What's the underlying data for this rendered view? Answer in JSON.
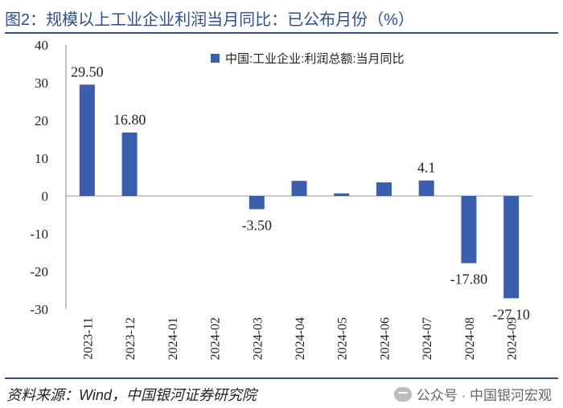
{
  "header": {
    "title": "图2：规模以上工业企业利润当月同比：已公布月份（%）"
  },
  "footer": {
    "source": "资料来源：Wind，中国银河证券研究院",
    "watermark": "公众号 · 中国银河宏观"
  },
  "colors": {
    "bar": "#3a5fad",
    "rule": "#2f4f8f"
  },
  "chart_data": {
    "type": "bar",
    "categories": [
      "2023-11",
      "2023-12",
      "2024-01",
      "2024-02",
      "2024-03",
      "2024-04",
      "2024-05",
      "2024-06",
      "2024-07",
      "2024-08",
      "2024-09"
    ],
    "series": [
      {
        "name": "中国:工业企业:利润总额:当月同比",
        "values": [
          29.5,
          16.8,
          null,
          null,
          -3.5,
          4.0,
          0.7,
          3.6,
          4.1,
          -17.8,
          -27.1
        ]
      }
    ],
    "data_labels": [
      "29.50",
      "16.80",
      "",
      "",
      "-3.50",
      "",
      "",
      "",
      "4.1",
      "-17.80",
      "-27.10"
    ],
    "yticks": [
      "40",
      "30",
      "20",
      "10",
      "0",
      "-10",
      "-20",
      "-30"
    ],
    "ylim": [
      -30,
      40
    ],
    "legend": "top-right",
    "title": "",
    "xlabel": "",
    "ylabel": ""
  }
}
